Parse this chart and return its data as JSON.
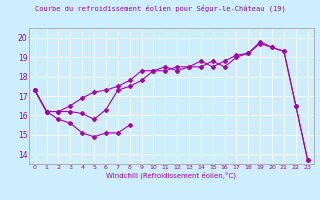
{
  "background_color": "#cceeff",
  "grid_color": "#aaddcc",
  "line_color": "#aa00aa",
  "xlim": [
    -0.5,
    23.5
  ],
  "ylim": [
    13.5,
    20.5
  ],
  "xticks": [
    0,
    1,
    2,
    3,
    4,
    5,
    6,
    7,
    8,
    9,
    10,
    11,
    12,
    13,
    14,
    15,
    16,
    17,
    18,
    19,
    20,
    21,
    22,
    23
  ],
  "yticks": [
    14,
    15,
    16,
    17,
    18,
    19,
    20
  ],
  "xlabel": "Windchill (Refroidissement éolien,°C)",
  "title_line1": "Courbe du refroidissement éolien pour Ségur-le-Château (19)",
  "line1_x": [
    0,
    1,
    2,
    3,
    4,
    5,
    6,
    7,
    8
  ],
  "line1_y": [
    17.3,
    16.2,
    15.8,
    15.6,
    15.1,
    14.9,
    15.1,
    15.1,
    15.5
  ],
  "line2_x": [
    0,
    1,
    2,
    3,
    4,
    5,
    6,
    7,
    8,
    9,
    10,
    11,
    12,
    13,
    14,
    15,
    16,
    17,
    18,
    19,
    20,
    21,
    22,
    23
  ],
  "line2_y": [
    17.3,
    16.2,
    16.2,
    16.2,
    16.1,
    15.8,
    16.3,
    17.3,
    17.5,
    17.8,
    18.3,
    18.3,
    18.5,
    18.5,
    18.8,
    18.5,
    18.8,
    19.1,
    19.2,
    19.8,
    19.5,
    19.3,
    16.5,
    13.7
  ],
  "line3_x": [
    0,
    1,
    2,
    3,
    4,
    5,
    6,
    7,
    8,
    9,
    10,
    11,
    12,
    13,
    14,
    15,
    16,
    17,
    18,
    19,
    20,
    21,
    22,
    23
  ],
  "line3_y": [
    17.3,
    16.2,
    16.2,
    16.5,
    16.9,
    17.2,
    17.3,
    17.5,
    17.8,
    18.3,
    18.3,
    18.5,
    18.3,
    18.5,
    18.5,
    18.8,
    18.5,
    19.0,
    19.2,
    19.7,
    19.5,
    19.3,
    16.5,
    13.7
  ]
}
